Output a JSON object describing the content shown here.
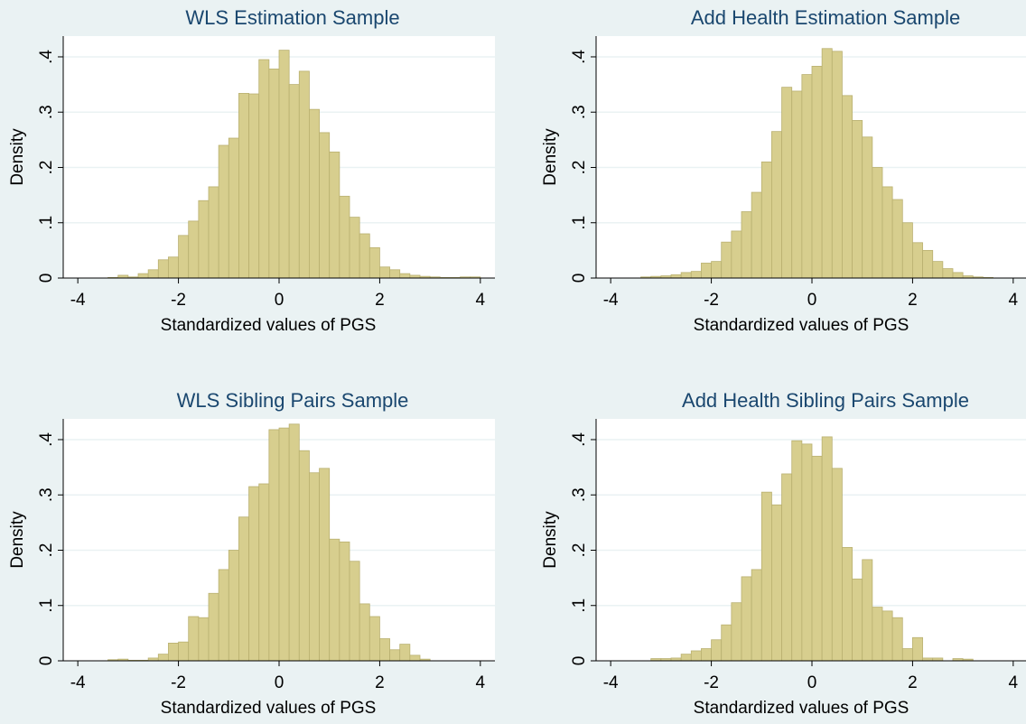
{
  "chart_data": [
    {
      "type": "histogram",
      "title": "WLS Estimation Sample",
      "xlabel": "Standardized values of PGS",
      "ylabel": "Density",
      "bins": [
        -3.4,
        -3.2,
        -3.0,
        -2.8,
        -2.6,
        -2.4,
        -2.2,
        -2.0,
        -1.8,
        -1.6,
        -1.4,
        -1.2,
        -1.0,
        -0.8,
        -0.6,
        -0.4,
        -0.2,
        0,
        0.2,
        0.4,
        0.6,
        0.8,
        1.0,
        1.2,
        1.4,
        1.6,
        1.8,
        2.0,
        2.2,
        2.4,
        2.6,
        2.8,
        3.0,
        3.2,
        3.4,
        3.6,
        3.8,
        4.0
      ],
      "values": [
        0.001,
        0.005,
        0.002,
        0.008,
        0.015,
        0.033,
        0.038,
        0.077,
        0.103,
        0.14,
        0.165,
        0.24,
        0.253,
        0.334,
        0.333,
        0.395,
        0.378,
        0.412,
        0.35,
        0.374,
        0.305,
        0.263,
        0.228,
        0.148,
        0.11,
        0.08,
        0.055,
        0.02,
        0.015,
        0.008,
        0.005,
        0.003,
        0.002,
        0.001,
        0.001,
        0.002,
        0.002
      ],
      "color": "#d7ce8e",
      "xlim": [
        -4.29,
        4.29
      ],
      "ylim": [
        0,
        0.4375
      ],
      "xticks": [
        -4,
        -2,
        0,
        2,
        4
      ],
      "yticks": [
        0,
        {
          "value": 0.1,
          "label": ".1"
        },
        {
          "value": 0.2,
          "label": ".2"
        },
        {
          "value": 0.3,
          "label": ".3"
        },
        {
          "value": 0.4,
          "label": ".4"
        }
      ],
      "grid": true
    },
    {
      "type": "histogram",
      "title": "Add Health Estimation Sample",
      "xlabel": "Standardized values of PGS",
      "ylabel": "Density",
      "bins": [
        -3.4,
        -3.2,
        -3.0,
        -2.8,
        -2.6,
        -2.4,
        -2.2,
        -2.0,
        -1.8,
        -1.6,
        -1.4,
        -1.2,
        -1.0,
        -0.8,
        -0.6,
        -0.4,
        -0.2,
        0,
        0.2,
        0.4,
        0.6,
        0.8,
        1.0,
        1.2,
        1.4,
        1.6,
        1.8,
        2.0,
        2.2,
        2.4,
        2.6,
        2.8,
        3.0,
        3.2,
        3.4,
        3.6
      ],
      "values": [
        0.002,
        0.003,
        0.004,
        0.006,
        0.01,
        0.012,
        0.027,
        0.03,
        0.065,
        0.085,
        0.12,
        0.155,
        0.21,
        0.265,
        0.345,
        0.338,
        0.368,
        0.383,
        0.415,
        0.41,
        0.33,
        0.285,
        0.255,
        0.2,
        0.165,
        0.142,
        0.1,
        0.064,
        0.05,
        0.03,
        0.017,
        0.01,
        0.004,
        0.002,
        0.001
      ],
      "color": "#d7ce8e",
      "xlim": [
        -4.29,
        4.29
      ],
      "ylim": [
        0,
        0.4375
      ],
      "xticks": [
        -4,
        -2,
        0,
        2,
        4
      ],
      "yticks": [
        0,
        {
          "value": 0.1,
          "label": ".1"
        },
        {
          "value": 0.2,
          "label": ".2"
        },
        {
          "value": 0.3,
          "label": ".3"
        },
        {
          "value": 0.4,
          "label": ".4"
        }
      ],
      "grid": true
    },
    {
      "type": "histogram",
      "title": "WLS Sibling Pairs Sample",
      "xlabel": "Standardized values of PGS",
      "ylabel": "Density",
      "bins": [
        -3.4,
        -3.2,
        -3.0,
        -2.8,
        -2.6,
        -2.4,
        -2.2,
        -2.0,
        -1.8,
        -1.6,
        -1.4,
        -1.2,
        -1.0,
        -0.8,
        -0.6,
        -0.4,
        -0.2,
        0,
        0.2,
        0.4,
        0.6,
        0.8,
        1.0,
        1.2,
        1.4,
        1.6,
        1.8,
        2.0,
        2.2,
        2.4,
        2.6,
        2.8,
        3.0
      ],
      "values": [
        0.002,
        0.003,
        0.001,
        0.001,
        0.005,
        0.012,
        0.032,
        0.034,
        0.08,
        0.078,
        0.122,
        0.165,
        0.2,
        0.26,
        0.315,
        0.32,
        0.418,
        0.421,
        0.428,
        0.38,
        0.34,
        0.348,
        0.22,
        0.215,
        0.18,
        0.103,
        0.08,
        0.04,
        0.02,
        0.03,
        0.01,
        0.003
      ],
      "color": "#d7ce8e",
      "xlim": [
        -4.29,
        4.29
      ],
      "ylim": [
        0,
        0.4375
      ],
      "xticks": [
        -4,
        -2,
        0,
        2,
        4
      ],
      "yticks": [
        0,
        {
          "value": 0.1,
          "label": ".1"
        },
        {
          "value": 0.2,
          "label": ".2"
        },
        {
          "value": 0.3,
          "label": ".3"
        },
        {
          "value": 0.4,
          "label": ".4"
        }
      ],
      "grid": true
    },
    {
      "type": "histogram",
      "title": "Add Health Sibling Pairs Sample",
      "xlabel": "Standardized values of PGS",
      "ylabel": "Density",
      "bins": [
        -3.4,
        -3.2,
        -3.0,
        -2.8,
        -2.6,
        -2.4,
        -2.2,
        -2.0,
        -1.8,
        -1.6,
        -1.4,
        -1.2,
        -1.0,
        -0.8,
        -0.6,
        -0.4,
        -0.2,
        0,
        0.2,
        0.4,
        0.6,
        0.8,
        1.0,
        1.2,
        1.4,
        1.6,
        1.8,
        2.0,
        2.2,
        2.4,
        2.6,
        2.8,
        3.0,
        3.2,
        3.4,
        3.6,
        3.8
      ],
      "values": [
        0,
        0.004,
        0.004,
        0.005,
        0.012,
        0.018,
        0.022,
        0.038,
        0.065,
        0.105,
        0.152,
        0.165,
        0.305,
        0.282,
        0.338,
        0.398,
        0.392,
        0.37,
        0.405,
        0.348,
        0.205,
        0.148,
        0.183,
        0.097,
        0.09,
        0.078,
        0.022,
        0.042,
        0.005,
        0.005,
        0,
        0.004,
        0.003,
        0,
        0,
        0
      ],
      "color": "#d7ce8e",
      "xlim": [
        -4.29,
        4.29
      ],
      "ylim": [
        0,
        0.4375
      ],
      "xticks": [
        -4,
        -2,
        0,
        2,
        4
      ],
      "yticks": [
        0,
        {
          "value": 0.1,
          "label": ".1"
        },
        {
          "value": 0.2,
          "label": ".2"
        },
        {
          "value": 0.3,
          "label": ".3"
        },
        {
          "value": 0.4,
          "label": ".4"
        }
      ],
      "grid": true
    }
  ]
}
